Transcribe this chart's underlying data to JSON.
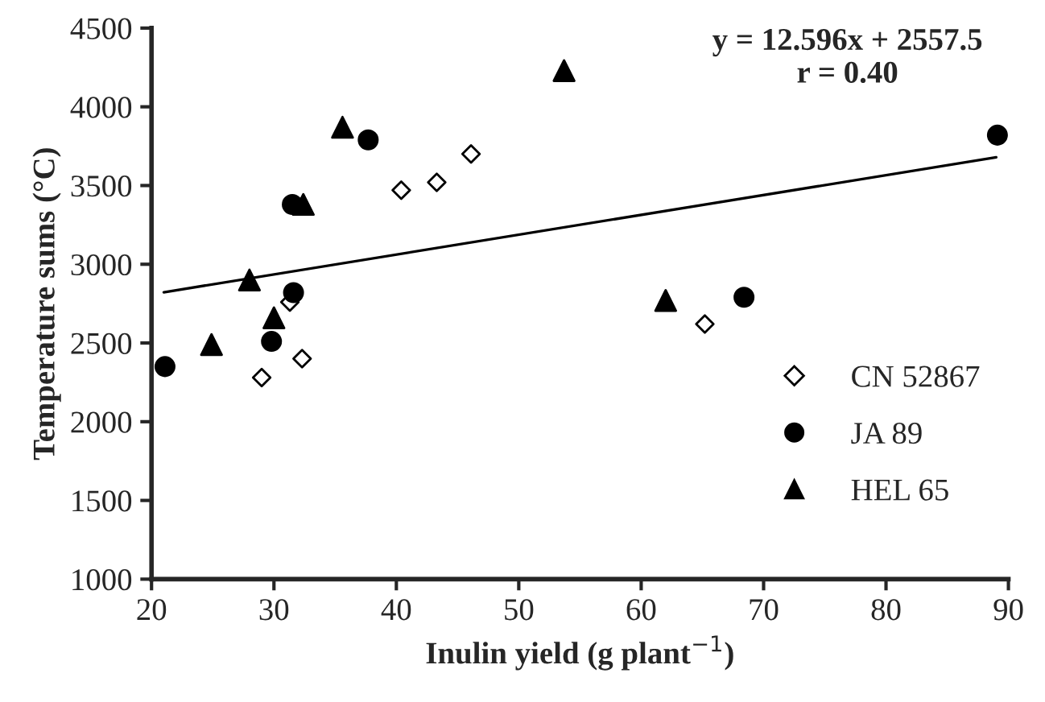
{
  "chart_data": {
    "type": "scatter",
    "xlabel": "Inulin yield (g plant$^{−1}$)",
    "ylabel": "Temperature sums (°C)",
    "xlim": [
      20,
      90
    ],
    "xticks": [
      20,
      30,
      40,
      50,
      60,
      70,
      80,
      90
    ],
    "ylim": [
      1000,
      4500
    ],
    "yticks": [
      1000,
      1500,
      2000,
      2500,
      3000,
      3500,
      4000,
      4500
    ],
    "grid": false,
    "legend": "bottom right",
    "annotations": [
      "y = 12.596x + 2557.5\nr = 0.40"
    ],
    "series": [
      {
        "name": "CN 52867",
        "color": "#ffffff",
        "marker": "diamond",
        "x": [
          29.0,
          32.3,
          31.3,
          40.4,
          43.3,
          46.1,
          65.2
        ],
        "values": [
          2280,
          2400,
          2760,
          3470,
          3520,
          3700,
          2620
        ]
      },
      {
        "name": "JA 89",
        "color": "#000000",
        "marker": "circle",
        "x": [
          21.1,
          29.8,
          31.6,
          31.5,
          37.7,
          68.4,
          89.1
        ],
        "values": [
          2350,
          2510,
          2820,
          3380,
          3790,
          2790,
          3820
        ]
      },
      {
        "name": "HEL 65",
        "color": "#000000",
        "marker": "triangle",
        "x": [
          24.9,
          28.0,
          30.0,
          32.4,
          35.6,
          53.7,
          62.0
        ],
        "values": [
          2490,
          2900,
          2660,
          3380,
          3870,
          4230,
          2770
        ]
      },
      {
        "type": "line",
        "color": "#000000",
        "marker": "none",
        "line_style": "solid",
        "x": [
          21,
          89
        ],
        "values": [
          2822,
          3679
        ]
      }
    ]
  }
}
